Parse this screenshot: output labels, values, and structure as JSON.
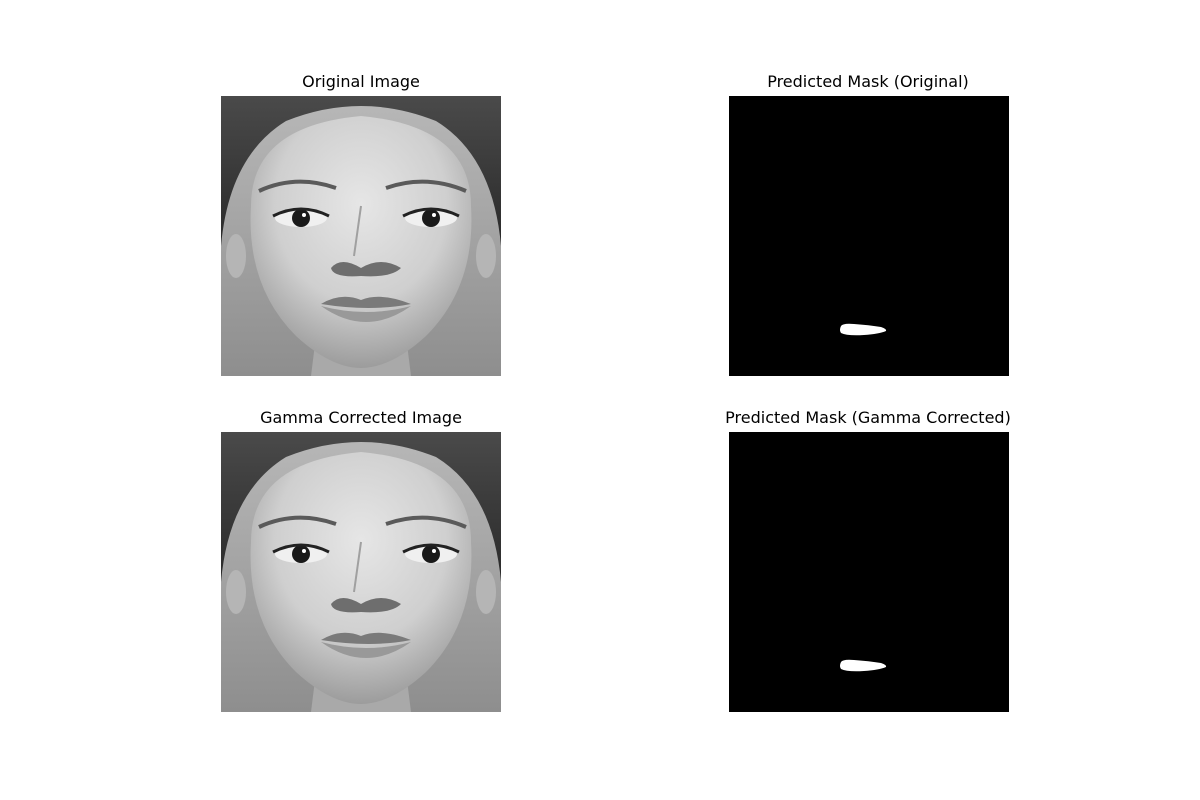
{
  "figure": {
    "panels": [
      {
        "title": "Original Image",
        "kind": "face-photo"
      },
      {
        "title": "Predicted Mask (Original)",
        "kind": "binary-mask"
      },
      {
        "title": "Gamma Corrected Image",
        "kind": "face-photo"
      },
      {
        "title": "Predicted Mask (Gamma Corrected)",
        "kind": "binary-mask"
      }
    ]
  },
  "colors": {
    "background": "#ffffff",
    "mask_background": "#000000",
    "mask_foreground": "#ffffff"
  }
}
